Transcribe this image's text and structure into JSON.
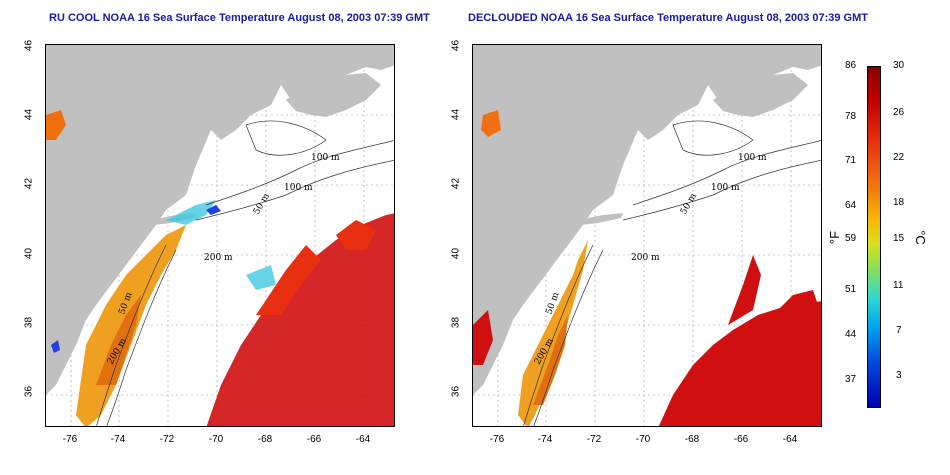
{
  "titles": {
    "left": "RU COOL NOAA 16 Sea Surface Temperature August 08, 2003 07:39 GMT",
    "right": "DECLOUDED NOAA 16 Sea Surface Temperature August 08, 2003 07:39 GMT"
  },
  "axes": {
    "lat_ticks": [
      "46",
      "44",
      "42",
      "40",
      "38",
      "36"
    ],
    "lon_ticks": [
      "-76",
      "-74",
      "-72",
      "-70",
      "-68",
      "-66",
      "-64"
    ]
  },
  "contours": {
    "left": [
      "100 m",
      "100 m",
      "50 m",
      "200 m",
      "50 m",
      "200 m"
    ],
    "right": [
      "100 m",
      "100 m",
      "50 m",
      "200 m",
      "50 m",
      "200 m"
    ]
  },
  "colorbar": {
    "fahrenheit_ticks": [
      "86",
      "78",
      "71",
      "64",
      "59",
      "51",
      "44",
      "37"
    ],
    "celsius_ticks": [
      "30",
      "26",
      "22",
      "18",
      "15",
      "11",
      "7",
      "3"
    ],
    "fahrenheit_unit": "°F",
    "celsius_unit": "°C"
  },
  "colors": {
    "title": "#1a1aa0",
    "land": "#c0c0c0",
    "warm": "#d01010",
    "cool": "#2040e0"
  }
}
